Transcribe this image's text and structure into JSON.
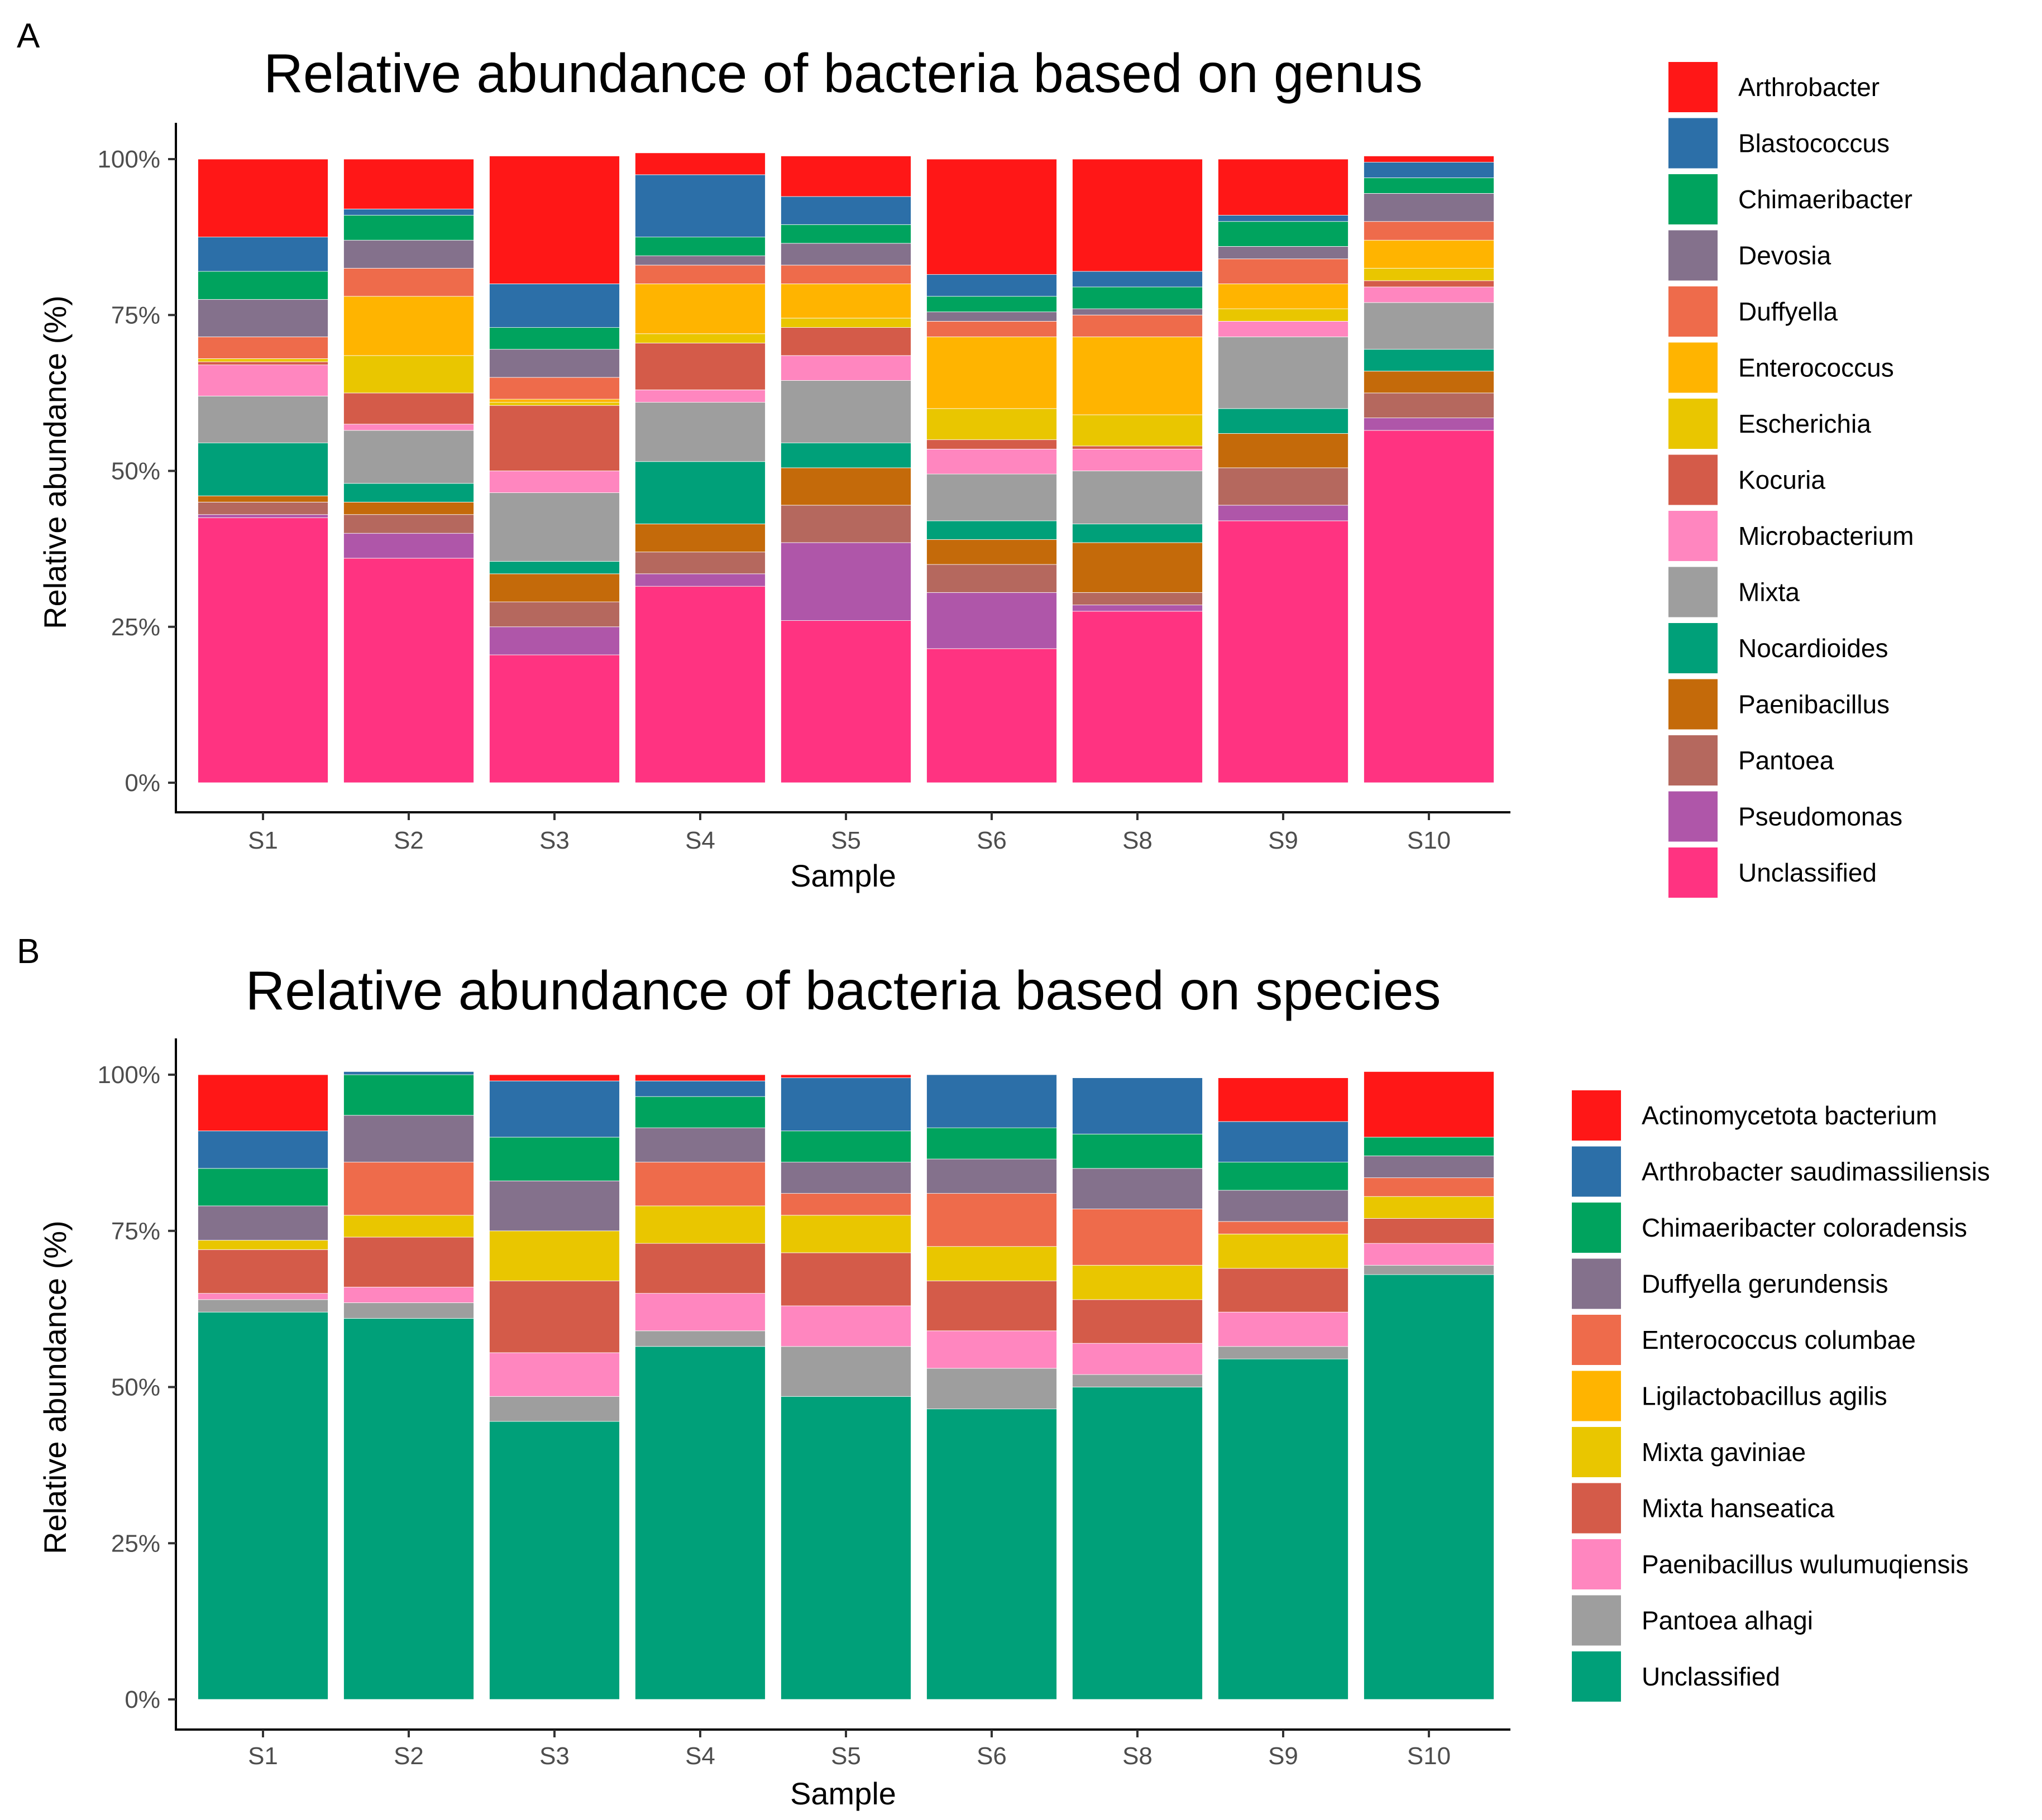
{
  "panels": [
    {
      "letter": "A",
      "chart_data": {
        "type": "bar",
        "stacked": true,
        "title": "Relative abundance of bacteria based on genus",
        "xlabel": "Sample",
        "ylabel": "Relative abundance (%)",
        "ylim": [
          0,
          100
        ],
        "yticks": [
          "0%",
          "25%",
          "50%",
          "75%",
          "100%"
        ],
        "ytick_values": [
          0,
          25,
          50,
          75,
          100
        ],
        "categories": [
          "S1",
          "S2",
          "S3",
          "S4",
          "S5",
          "S6",
          "S8",
          "S9",
          "S10"
        ],
        "legend_position": "right",
        "legend_order": [
          "Arthrobacter",
          "Blastococcus",
          "Chimaeribacter",
          "Devosia",
          "Duffyella",
          "Enterococcus",
          "Escherichia",
          "Kocuria",
          "Microbacterium",
          "Mixta",
          "Nocardioides",
          "Paenibacillus",
          "Pantoea",
          "Pseudomonas",
          "Unclassified"
        ],
        "series": [
          {
            "name": "Unclassified",
            "color": "#FF3381",
            "values": [
              42.5,
              36,
              20.5,
              31.5,
              26,
              21.5,
              27.5,
              42,
              56.5
            ]
          },
          {
            "name": "Pseudomonas",
            "color": "#AF56A9",
            "values": [
              0.5,
              4,
              4.5,
              2,
              12.5,
              9,
              1,
              2.5,
              2
            ]
          },
          {
            "name": "Pantoea",
            "color": "#B5685E",
            "values": [
              2,
              3,
              4,
              3.5,
              6,
              4.5,
              2,
              6,
              4
            ]
          },
          {
            "name": "Paenibacillus",
            "color": "#C46A0A",
            "values": [
              1,
              2,
              4.5,
              4.5,
              6,
              4,
              8,
              5.5,
              3.5
            ]
          },
          {
            "name": "Nocardioides",
            "color": "#00A079",
            "values": [
              8.5,
              3,
              2,
              10,
              4,
              3,
              3,
              4,
              3.5
            ]
          },
          {
            "name": "Mixta",
            "color": "#9E9E9E",
            "values": [
              7.5,
              8.5,
              11,
              9.5,
              10,
              7.5,
              8.5,
              11.5,
              7.5
            ]
          },
          {
            "name": "Microbacterium",
            "color": "#FF86BF",
            "values": [
              5,
              1,
              3.5,
              2,
              4,
              4,
              3.5,
              2.5,
              2.5
            ]
          },
          {
            "name": "Kocuria",
            "color": "#D45B49",
            "values": [
              0.5,
              5,
              10.5,
              7.5,
              4.5,
              1.5,
              0.5,
              0,
              1
            ]
          },
          {
            "name": "Escherichia",
            "color": "#E9C600",
            "values": [
              0.5,
              6,
              0.5,
              1.5,
              1.5,
              5,
              5,
              2,
              2
            ]
          },
          {
            "name": "Enterococcus",
            "color": "#FFB400",
            "values": [
              0,
              9.5,
              0.5,
              8,
              5.5,
              11.5,
              12.5,
              4,
              4.5
            ]
          },
          {
            "name": "Duffyella",
            "color": "#EE6B4B",
            "values": [
              3.5,
              4.5,
              3.5,
              3,
              3,
              2.5,
              3.5,
              4,
              3
            ]
          },
          {
            "name": "Devosia",
            "color": "#84718C",
            "values": [
              6,
              4.5,
              4.5,
              1.5,
              3.5,
              1.5,
              1,
              2,
              4.5
            ]
          },
          {
            "name": "Chimaeribacter",
            "color": "#00A35E",
            "values": [
              4.5,
              4,
              3.5,
              3,
              3,
              2.5,
              3.5,
              4,
              2.5
            ]
          },
          {
            "name": "Blastococcus",
            "color": "#2C6FA8",
            "values": [
              5.5,
              1,
              7,
              10,
              4.5,
              3.5,
              2.5,
              1,
              2.5
            ]
          },
          {
            "name": "Arthrobacter",
            "color": "#FF1717",
            "values": [
              12.5,
              8,
              20.5,
              3.5,
              6.5,
              18.5,
              18,
              9,
              1
            ]
          }
        ]
      }
    },
    {
      "letter": "B",
      "chart_data": {
        "type": "bar",
        "stacked": true,
        "title": "Relative abundance of bacteria based on species",
        "xlabel": "Sample",
        "ylabel": "Relative abundance (%)",
        "ylim": [
          0,
          100
        ],
        "yticks": [
          "0%",
          "25%",
          "50%",
          "75%",
          "100%"
        ],
        "ytick_values": [
          0,
          25,
          50,
          75,
          100
        ],
        "categories": [
          "S1",
          "S2",
          "S3",
          "S4",
          "S5",
          "S6",
          "S8",
          "S9",
          "S10"
        ],
        "legend_position": "right",
        "legend_order": [
          "Actinomycetota bacterium",
          "Arthrobacter saudimassiliensis",
          "Chimaeribacter coloradensis",
          "Duffyella gerundensis",
          "Enterococcus columbae",
          "Ligilactobacillus agilis",
          "Mixta gaviniae",
          "Mixta hanseatica",
          "Paenibacillus wulumuqiensis",
          "Pantoea alhagi",
          "Unclassified"
        ],
        "series": [
          {
            "name": "Unclassified",
            "color": "#00A079",
            "values": [
              62,
              61,
              44.5,
              56.5,
              48.5,
              46.5,
              50,
              54.5,
              68
            ]
          },
          {
            "name": "Pantoea alhagi",
            "color": "#9E9E9E",
            "values": [
              2,
              2.5,
              4,
              2.5,
              8,
              6.5,
              2,
              2,
              1.5
            ]
          },
          {
            "name": "Paenibacillus wulumuqiensis",
            "color": "#FF86BF",
            "values": [
              1,
              2.5,
              7,
              6,
              6.5,
              6,
              5,
              5.5,
              3.5
            ]
          },
          {
            "name": "Mixta hanseatica",
            "color": "#D45B49",
            "values": [
              7,
              8,
              11.5,
              8,
              8.5,
              8,
              7,
              7,
              4
            ]
          },
          {
            "name": "Mixta gaviniae",
            "color": "#E9C600",
            "values": [
              1.5,
              3.5,
              8,
              6,
              6,
              5.5,
              5.5,
              5.5,
              3.5
            ]
          },
          {
            "name": "Ligilactobacillus agilis",
            "color": "#FFB400",
            "values": [
              0,
              0,
              0,
              0,
              0,
              0,
              0,
              0,
              0
            ]
          },
          {
            "name": "Enterococcus columbae",
            "color": "#EE6B4B",
            "values": [
              0,
              8.5,
              0,
              7,
              3.5,
              8.5,
              9,
              2,
              3
            ]
          },
          {
            "name": "Duffyella gerundensis",
            "color": "#84718C",
            "values": [
              5.5,
              7.5,
              8,
              5.5,
              5,
              5.5,
              6.5,
              5,
              3.5
            ]
          },
          {
            "name": "Chimaeribacter coloradensis",
            "color": "#00A35E",
            "values": [
              6,
              6.5,
              7,
              5,
              5,
              5,
              5.5,
              4.5,
              3
            ]
          },
          {
            "name": "Arthrobacter saudimassiliensis",
            "color": "#2C6FA8",
            "values": [
              6,
              0.5,
              9,
              2.5,
              8.5,
              8.5,
              9,
              6.5,
              0
            ]
          },
          {
            "name": "Actinomycetota bacterium",
            "color": "#FF1717",
            "values": [
              9,
              0,
              1,
              1,
              0.5,
              0,
              0,
              7,
              10.5
            ]
          }
        ]
      }
    }
  ]
}
